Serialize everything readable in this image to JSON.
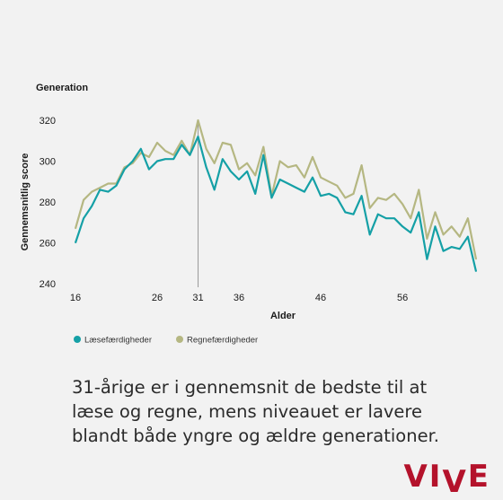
{
  "chart_data": {
    "type": "line",
    "title": "Generation",
    "xlabel": "Alder",
    "ylabel": "Gennemsnitlig score",
    "xlim": [
      16,
      65
    ],
    "ylim": [
      240,
      320
    ],
    "xticks": [
      "16",
      "26",
      "31",
      "36",
      "46",
      "56"
    ],
    "yticks": [
      "240",
      "260",
      "280",
      "300",
      "320"
    ],
    "reference_line_x": 31,
    "legend_position": "bottom-left",
    "x": [
      16,
      17,
      18,
      19,
      20,
      21,
      22,
      23,
      24,
      25,
      26,
      27,
      28,
      29,
      30,
      31,
      32,
      33,
      34,
      35,
      36,
      37,
      38,
      39,
      40,
      41,
      42,
      43,
      44,
      45,
      46,
      47,
      48,
      49,
      50,
      51,
      52,
      53,
      54,
      55,
      56,
      57,
      58,
      59,
      60,
      61,
      62,
      63,
      64,
      65
    ],
    "series": [
      {
        "name": "Læsefærdigheder",
        "color": "#15a0a6",
        "values": [
          260,
          272,
          278,
          286,
          285,
          288,
          296,
          300,
          306,
          296,
          300,
          301,
          301,
          308,
          303,
          312,
          297,
          286,
          301,
          295,
          291,
          295,
          284,
          303,
          282,
          291,
          289,
          287,
          285,
          292,
          283,
          284,
          282,
          275,
          274,
          283,
          264,
          274,
          272,
          272,
          268,
          265,
          275,
          252,
          268,
          256,
          258,
          257,
          263,
          246
        ]
      },
      {
        "name": "Regnefærdigheder",
        "color": "#b5b782",
        "values": [
          267,
          281,
          285,
          287,
          289,
          289,
          297,
          299,
          304,
          302,
          309,
          305,
          303,
          310,
          303,
          320,
          306,
          299,
          309,
          308,
          296,
          299,
          293,
          307,
          283,
          300,
          297,
          298,
          292,
          302,
          292,
          290,
          288,
          282,
          284,
          298,
          277,
          282,
          281,
          284,
          279,
          272,
          286,
          262,
          275,
          264,
          268,
          263,
          272,
          252
        ]
      }
    ]
  },
  "caption": "31-årige er i gennemsnit de bedste til at læse og regne, mens niveauet er lavere blandt både yngre og ældre generationer.",
  "logo": {
    "part1": "VI",
    "part2": "V",
    "part3": "E",
    "color": "#b4122b"
  }
}
